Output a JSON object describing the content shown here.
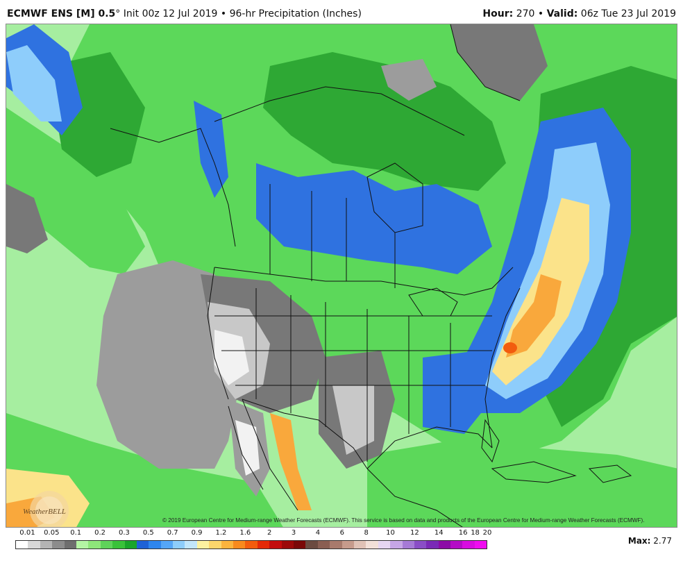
{
  "header": {
    "model": "ECMWF ENS [M] 0.5",
    "degree": "°",
    "init": "Init 00z 12 Jul 2019",
    "bullet": "•",
    "product": "96-hr Precipitation (Inches)",
    "hour_label": "Hour:",
    "hour_value": "270",
    "valid_label": "Valid:",
    "valid_value": "06z Tue 23 Jul 2019"
  },
  "copyright": "© 2019 European Centre for Medium-range Weather Forecasts (ECMWF). This service is based on data and products of the European Centre for Medium-range Weather Forecasts (ECMWF).",
  "logo_text": "WeatherBELL",
  "max": {
    "label": "Max:",
    "value": "2.77"
  },
  "colorbar": {
    "labels": [
      "0.01",
      "0.05",
      "0.1",
      "0.2",
      "0.3",
      "0.5",
      "0.7",
      "0.9",
      "1.2",
      "1.6",
      "2",
      "3",
      "4",
      "6",
      "8",
      "10",
      "12",
      "14",
      "16",
      "18",
      "20"
    ],
    "colors": [
      "#ffffff",
      "#d8d8d8",
      "#b4b4b4",
      "#8c8c8c",
      "#6e6e6e",
      "#b4f5a4",
      "#8ee67a",
      "#5fd35a",
      "#3ac23a",
      "#1aa52a",
      "#1f62d6",
      "#2f86ee",
      "#55a6f8",
      "#8ecdfb",
      "#c2e6fb",
      "#fdf2a0",
      "#fcd66c",
      "#fbb43e",
      "#f88a1e",
      "#f25c0e",
      "#e42a08",
      "#c30d0d",
      "#9c0a0a",
      "#7a0808",
      "#6b4a40",
      "#8a5e52",
      "#a87a6c",
      "#c69b8c",
      "#e0c2b6",
      "#f2e0d8",
      "#e6d6f2",
      "#c6a6e6",
      "#a67ad6",
      "#8a4ec6",
      "#7a2ab6",
      "#8c0ca6",
      "#b40cc6",
      "#d80ce0",
      "#f00cf0"
    ]
  },
  "map": {
    "colors": {
      "ocean_lightgreen": "#a6eea0",
      "green": "#5cd85a",
      "darkgreen": "#2ea834",
      "blue": "#2f72e0",
      "lightblue": "#8ecdfb",
      "paleblue": "#c8e8fb",
      "yellow": "#fbe38a",
      "orange": "#f9a83c",
      "red": "#f25c0e",
      "gray_dark": "#787878",
      "gray_mid": "#9c9c9c",
      "gray_light": "#c8c8c8",
      "white": "#f2f2f2",
      "border": "#111111"
    }
  }
}
